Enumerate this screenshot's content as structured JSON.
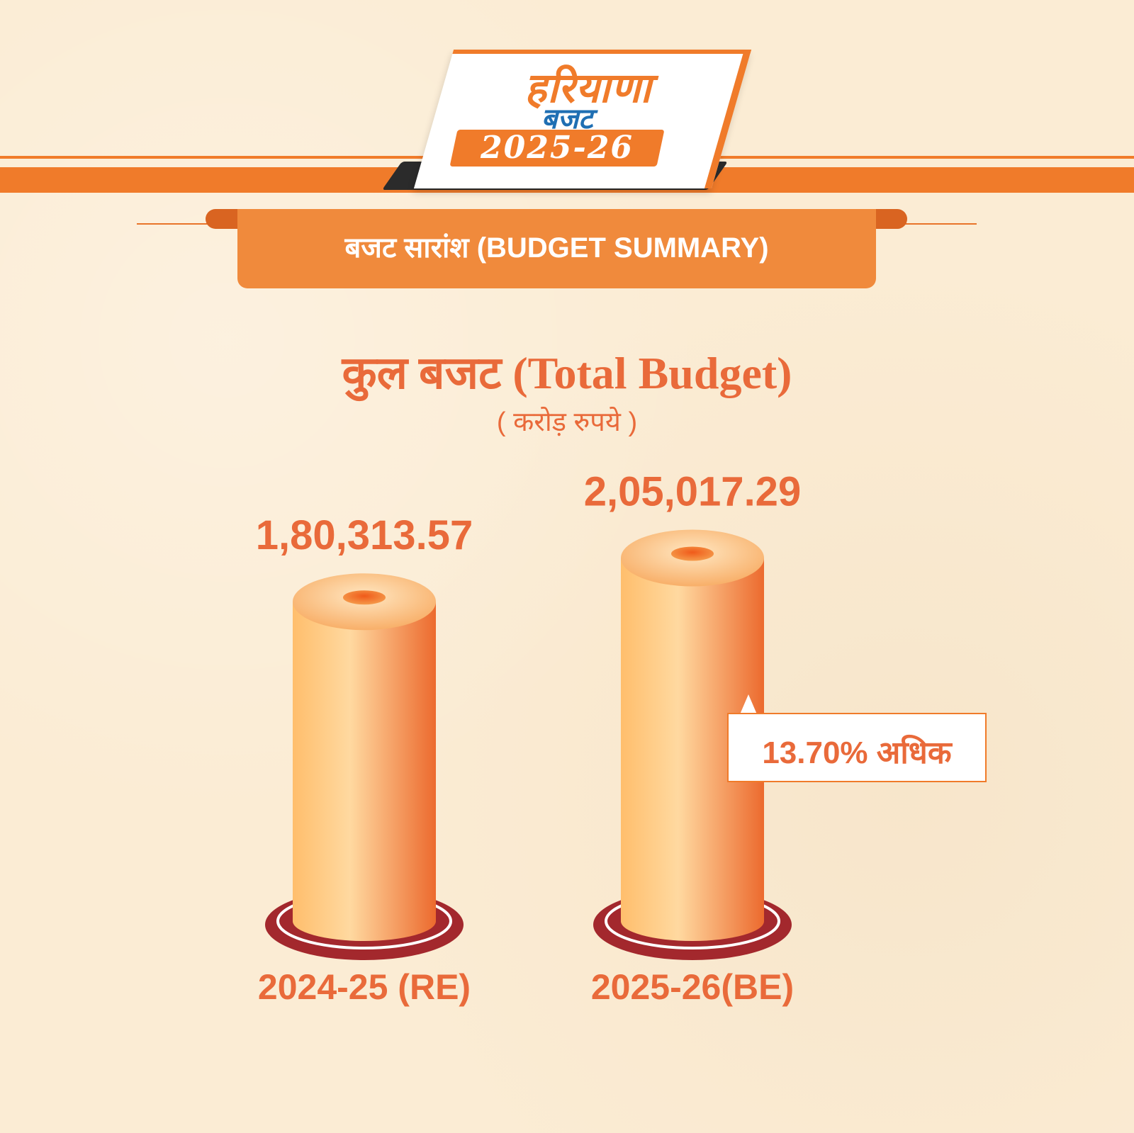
{
  "logo": {
    "line1": "हरियाणा",
    "line2": "बजट",
    "year": "2025-26"
  },
  "banner": {
    "text": "बजट सारांश  (BUDGET SUMMARY)"
  },
  "chart_data": {
    "type": "bar",
    "title": "कुल बजट (Total Budget)",
    "subtitle": "( करोड़ रुपये )",
    "categories": [
      "2024-25 (RE)",
      "2025-26(BE)"
    ],
    "values": [
      180313.57,
      205017.29
    ],
    "value_labels": [
      "1,80,313.57",
      "2,05,017.29"
    ],
    "annotation": "13.70% अधिक",
    "colors": {
      "bar_light": "#ffc776",
      "bar_dark": "#ec6a2e",
      "base_ring": "#a3282d"
    }
  }
}
